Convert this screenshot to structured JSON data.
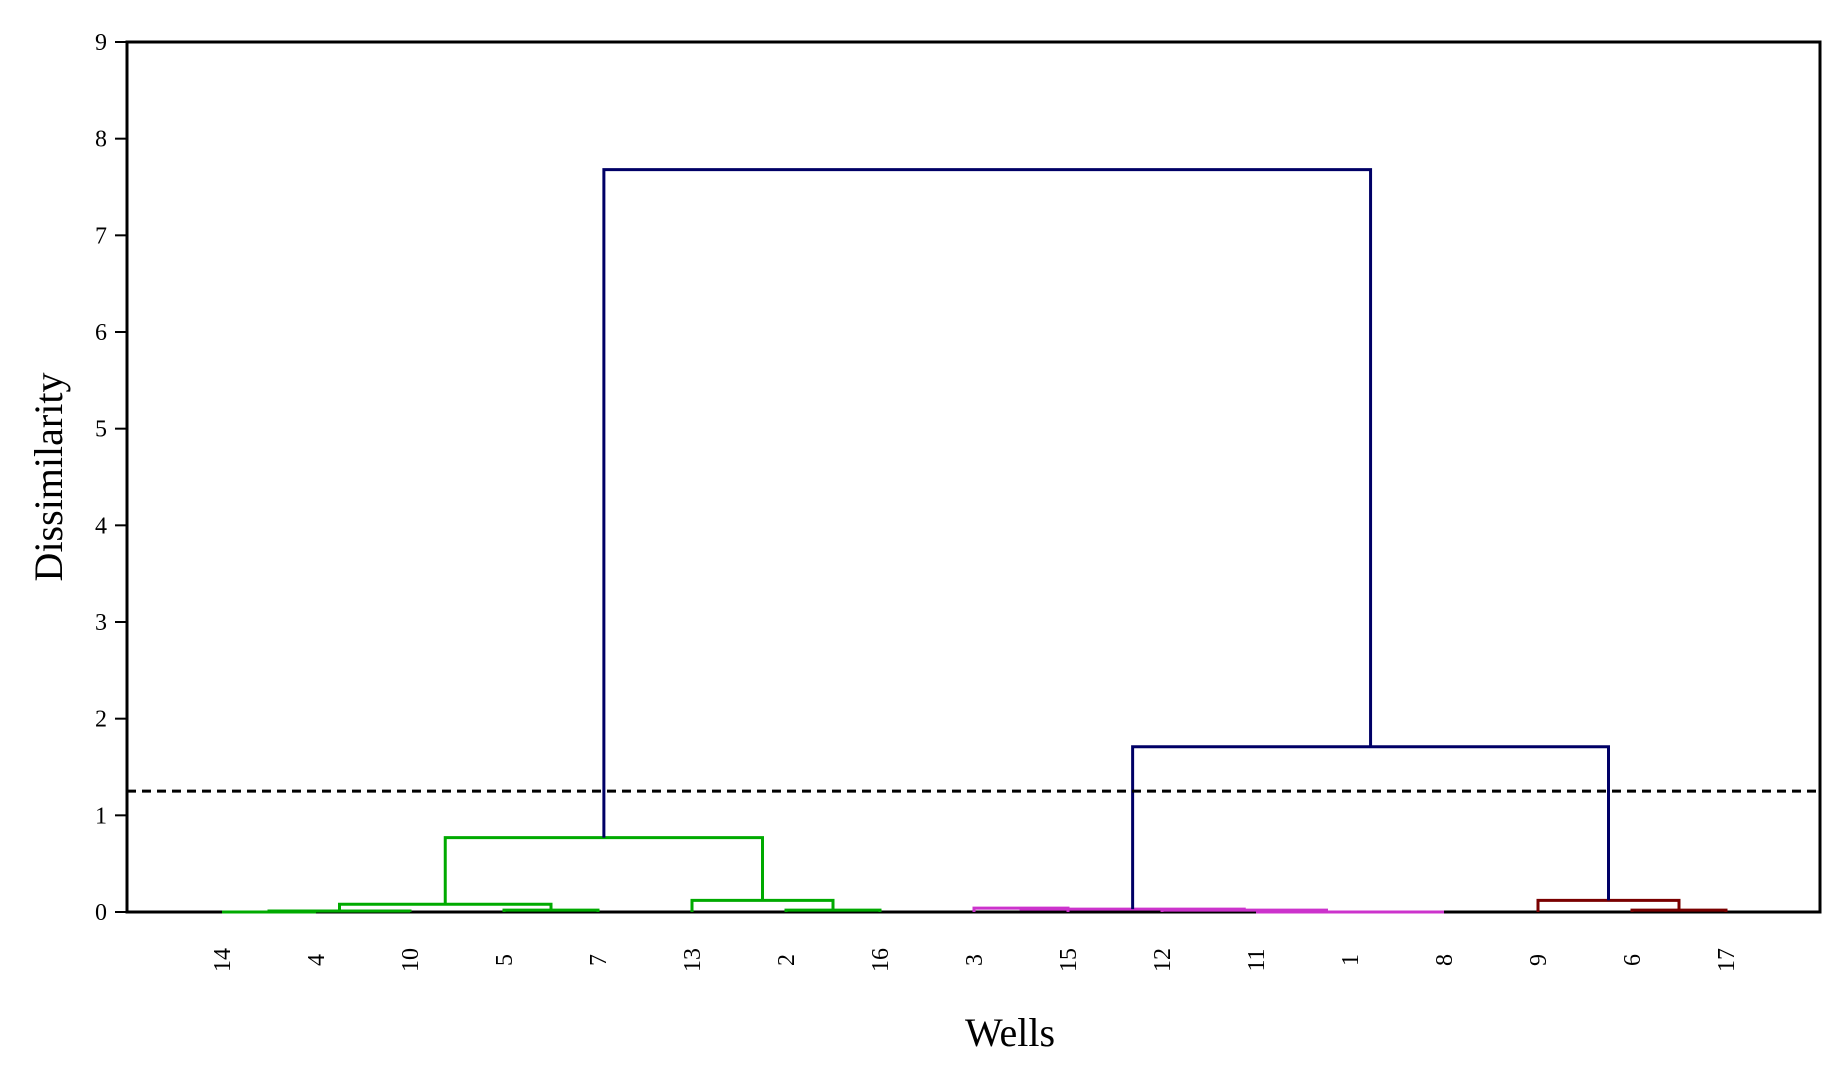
{
  "chart_data": {
    "type": "dendrogram",
    "xlabel": "Wells",
    "ylabel": "Dissimilarity",
    "ylim": [
      0,
      9
    ],
    "yticks": [
      0,
      1,
      2,
      3,
      4,
      5,
      6,
      7,
      8,
      9
    ],
    "leaves": [
      "14",
      "4",
      "10",
      "5",
      "7",
      "13",
      "2",
      "16",
      "3",
      "15",
      "12",
      "11",
      "1",
      "8",
      "9",
      "6",
      "17"
    ],
    "cut_threshold": 1.25,
    "colors": {
      "cluster_green": "#00aa00",
      "cluster_magenta": "#cc33cc",
      "cluster_maroon": "#7a0000",
      "upper_links": "#000066",
      "threshold_line": "#000000"
    },
    "merges": [
      {
        "left": "14",
        "right": "4",
        "height": 0.0,
        "color": "cluster_green"
      },
      {
        "left": "5",
        "right": "7",
        "height": 0.02,
        "color": "cluster_green"
      },
      {
        "left": "2",
        "right": "16",
        "height": 0.02,
        "color": "cluster_green"
      },
      {
        "left": "(14,4)",
        "right": "10",
        "height": 0.01,
        "color": "cluster_green"
      },
      {
        "left": "(14,4,10)",
        "right": "(5,7)",
        "height": 0.08,
        "color": "cluster_green"
      },
      {
        "left": "13",
        "right": "(2,16)",
        "height": 0.12,
        "color": "cluster_green"
      },
      {
        "left": "(14,4,10,5,7)",
        "right": "(13,2,16)",
        "height": 0.77,
        "color": "cluster_green"
      },
      {
        "left": "1",
        "right": "8",
        "height": 0.0,
        "color": "cluster_magenta"
      },
      {
        "left": "11",
        "right": "(1,8)",
        "height": 0.0,
        "color": "cluster_magenta"
      },
      {
        "left": "12",
        "right": "(11,1,8)",
        "height": 0.02,
        "color": "cluster_magenta"
      },
      {
        "left": "3",
        "right": "15",
        "height": 0.04,
        "color": "cluster_magenta"
      },
      {
        "left": "(3,15)",
        "right": "(12,11,1,8)",
        "height": 0.03,
        "color": "cluster_magenta"
      },
      {
        "left": "6",
        "right": "17",
        "height": 0.02,
        "color": "cluster_maroon"
      },
      {
        "left": "9",
        "right": "(6,17)",
        "height": 0.12,
        "color": "cluster_maroon"
      },
      {
        "left": "(3,15,12,11,1,8)",
        "right": "(9,6,17)",
        "height": 1.71,
        "color": "upper_links"
      },
      {
        "left": "(14,4,10,5,7,13,2,16)",
        "right": "(3,15,12,11,1,8,9,6,17)",
        "height": 7.68,
        "color": "upper_links"
      }
    ]
  }
}
